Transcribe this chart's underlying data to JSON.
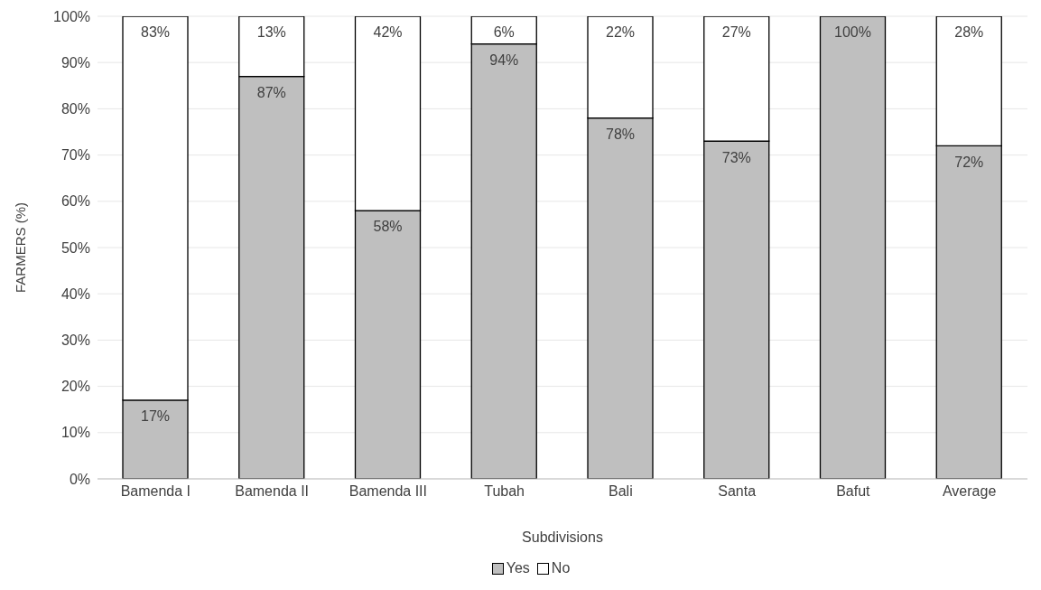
{
  "chart_data": {
    "type": "bar",
    "stacked": true,
    "categories": [
      "Bamenda I",
      "Bamenda II",
      "Bamenda III",
      "Tubah",
      "Bali",
      "Santa",
      "Bafut",
      "Average"
    ],
    "xlabel": "Subdivisions",
    "ylabel": "FARMERS (%)",
    "series": [
      {
        "name": "Yes",
        "color": "#bfbfbf",
        "values": [
          17,
          87,
          58,
          94,
          78,
          73,
          100,
          72
        ],
        "value_labels": [
          "17%",
          "87%",
          "58%",
          "94%",
          "78%",
          "73%",
          "100%",
          "72%"
        ]
      },
      {
        "name": "No",
        "color": "#ffffff",
        "values": [
          83,
          13,
          42,
          6,
          22,
          27,
          0,
          28
        ],
        "value_labels": [
          "83%",
          "13%",
          "42%",
          "6%",
          "22%",
          "27%",
          null,
          "28%"
        ]
      }
    ],
    "ylim": [
      0,
      100
    ],
    "yticks": [
      {
        "value": 0,
        "label": "0%"
      },
      {
        "value": 10,
        "label": "10%"
      },
      {
        "value": 20,
        "label": "20%"
      },
      {
        "value": 30,
        "label": "30%"
      },
      {
        "value": 40,
        "label": "40%"
      },
      {
        "value": 50,
        "label": "50%"
      },
      {
        "value": 60,
        "label": "60%"
      },
      {
        "value": 70,
        "label": "70%"
      },
      {
        "value": 80,
        "label": "80%"
      },
      {
        "value": 90,
        "label": "90%"
      },
      {
        "value": 100,
        "label": "100%"
      }
    ],
    "grid": "y",
    "legend": "bottom"
  }
}
